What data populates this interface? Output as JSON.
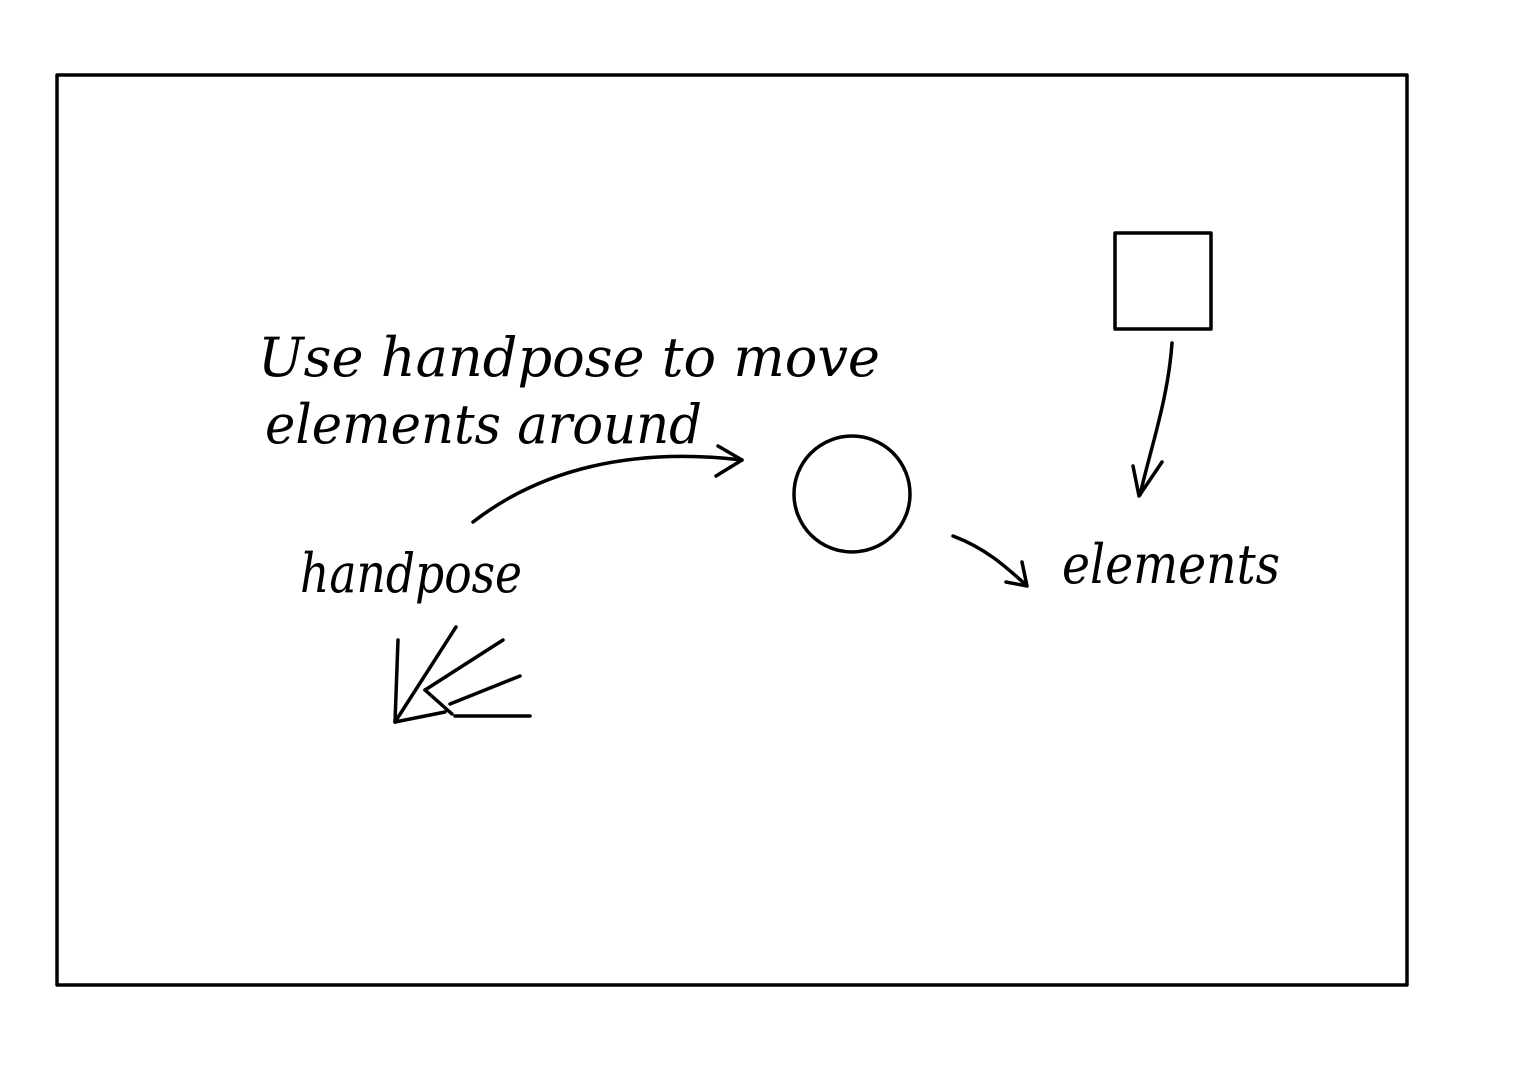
{
  "colors": {
    "ink": "#000000",
    "background": "#ffffff"
  },
  "annotations": {
    "instruction_line1": "Use handpose to move",
    "instruction_line2": "elements around",
    "handpose_label": "handpose",
    "elements_label": "elements"
  },
  "shapes": {
    "circle_element": "circle",
    "square_element": "square",
    "hand_icon": "hand-icon"
  }
}
